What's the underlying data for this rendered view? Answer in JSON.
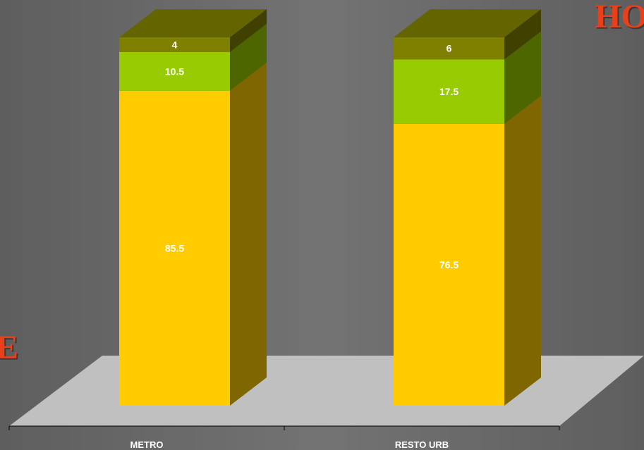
{
  "slide": {
    "title_fragment": "HO",
    "left_fragment": "E"
  },
  "chart_data": {
    "type": "bar",
    "stacked": true,
    "three_d": true,
    "categories": [
      "METRO",
      "RESTO URB"
    ],
    "series": [
      {
        "values": [
          85.5,
          76.5
        ],
        "color": "#ffcc00"
      },
      {
        "values": [
          10.5,
          17.5
        ],
        "color": "#99cc00"
      },
      {
        "values": [
          4,
          6
        ],
        "color": "#808000"
      }
    ],
    "ylim": [
      0,
      100
    ],
    "grid": false,
    "legend": "none",
    "floor_color": "#c0c0c0"
  }
}
